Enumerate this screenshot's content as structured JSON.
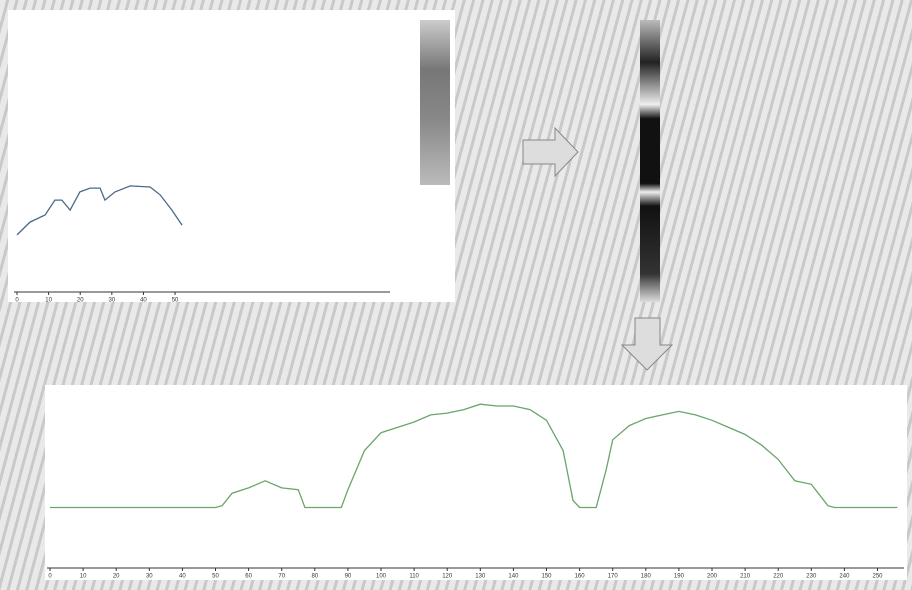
{
  "chart_data": [
    {
      "type": "line",
      "color": "#4a6a8a",
      "xlim": [
        0,
        118
      ],
      "ylim": [
        0,
        100
      ],
      "xticks": [
        0,
        10,
        20,
        30,
        40,
        50
      ],
      "x": [
        0,
        4.1,
        8.9,
        12,
        14.2,
        16.8,
        19.9,
        23.1,
        26.3,
        27.8,
        31,
        35.8,
        42.1,
        45.3,
        49,
        52.2
      ],
      "values": [
        21,
        25.7,
        28.3,
        33.8,
        33.8,
        30.1,
        36.8,
        38.2,
        38.2,
        33.8,
        36.8,
        39,
        38.6,
        35.7,
        30.1,
        24.6
      ]
    },
    {
      "type": "line",
      "color": "#6aa56a",
      "xlim": [
        0,
        258
      ],
      "ylim": [
        0,
        100
      ],
      "xticks": [
        0,
        10,
        20,
        30,
        40,
        50,
        60,
        70,
        80,
        90,
        100,
        110,
        120,
        130,
        140,
        150,
        160,
        170,
        180,
        190,
        200,
        210,
        220,
        230,
        240,
        250
      ],
      "x": [
        0,
        10,
        20,
        30,
        40,
        50,
        52,
        55,
        60,
        65,
        70,
        75,
        77,
        80,
        88,
        90,
        95,
        100,
        105,
        110,
        115,
        120,
        125,
        130,
        135,
        140,
        145,
        150,
        155,
        158,
        160,
        165,
        168,
        170,
        175,
        180,
        185,
        190,
        195,
        200,
        205,
        210,
        215,
        220,
        225,
        230,
        235,
        237,
        240,
        256
      ],
      "values": [
        34,
        34,
        34,
        34,
        34,
        34,
        35,
        42,
        45,
        49,
        45,
        44,
        34,
        34,
        34,
        44,
        66,
        76,
        79,
        82,
        86,
        87,
        89,
        92,
        91,
        91,
        89,
        83,
        66,
        38,
        34,
        34,
        55,
        72,
        80,
        84,
        86,
        88,
        86,
        83,
        79,
        75,
        69,
        61,
        49,
        47,
        35,
        34,
        34,
        34
      ]
    }
  ]
}
